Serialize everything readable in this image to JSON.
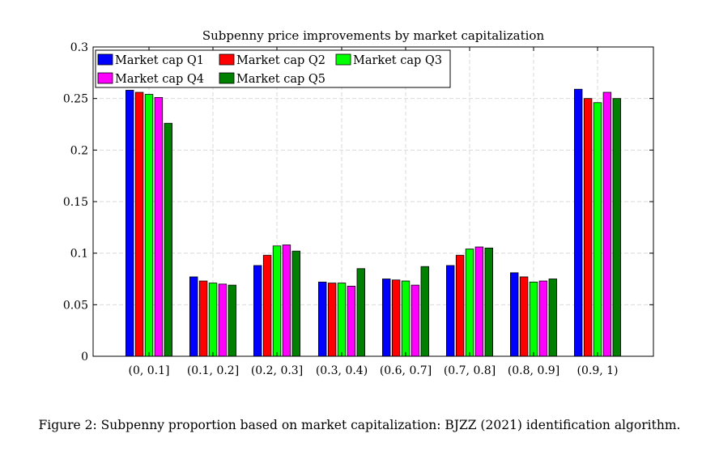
{
  "chart_data": {
    "type": "bar",
    "title": "Subpenny price improvements by market capitalization",
    "xlabel": "",
    "ylabel": "",
    "categories": [
      "(0, 0.1]",
      "(0.1, 0.2]",
      "(0.2, 0.3]",
      "(0.3, 0.4)",
      "(0.6, 0.7]",
      "(0.7, 0.8]",
      "(0.8, 0.9]",
      "(0.9, 1)"
    ],
    "ylim": [
      0,
      0.3
    ],
    "yticks": [
      0,
      0.05,
      0.1,
      0.15,
      0.2,
      0.25,
      0.3
    ],
    "ytick_labels": [
      "0",
      "0.05",
      "0.1",
      "0.15",
      "0.2",
      "0.25",
      "0.3"
    ],
    "grid": true,
    "legend_position": "top-left",
    "series": [
      {
        "name": "Market cap Q1",
        "color": "#0000ff",
        "values": [
          0.258,
          0.077,
          0.088,
          0.072,
          0.075,
          0.088,
          0.081,
          0.259
        ]
      },
      {
        "name": "Market cap Q2",
        "color": "#ff0000",
        "values": [
          0.256,
          0.073,
          0.098,
          0.071,
          0.074,
          0.098,
          0.077,
          0.25
        ]
      },
      {
        "name": "Market cap Q3",
        "color": "#00ff00",
        "values": [
          0.254,
          0.071,
          0.107,
          0.071,
          0.073,
          0.104,
          0.072,
          0.246
        ]
      },
      {
        "name": "Market cap Q4",
        "color": "#ff00ff",
        "values": [
          0.251,
          0.07,
          0.108,
          0.068,
          0.069,
          0.106,
          0.073,
          0.256
        ]
      },
      {
        "name": "Market cap Q5",
        "color": "#008000",
        "values": [
          0.226,
          0.069,
          0.102,
          0.085,
          0.087,
          0.105,
          0.075,
          0.25
        ]
      }
    ]
  },
  "caption": "Figure 2: Subpenny proportion based on market capitalization: BJZZ (2021) identification algorithm."
}
